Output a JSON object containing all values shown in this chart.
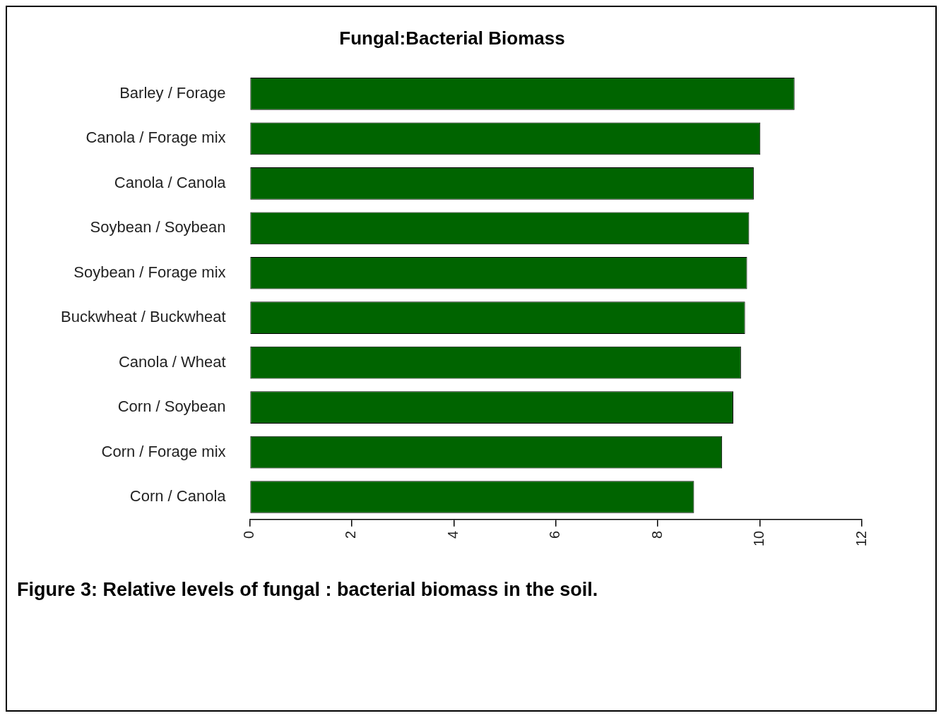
{
  "chart_data": {
    "type": "bar",
    "orientation": "horizontal",
    "title": "Fungal:Bacterial Biomass",
    "categories": [
      "Barley / Forage",
      "Canola / Forage mix",
      "Canola / Canola",
      "Soybean / Soybean",
      "Soybean / Forage mix",
      "Buckwheat / Buckwheat",
      "Canola / Wheat",
      "Corn / Soybean",
      "Corn / Forage mix",
      "Corn / Canola"
    ],
    "values": [
      10.68,
      10.01,
      9.88,
      9.79,
      9.75,
      9.71,
      9.63,
      9.48,
      9.26,
      8.71
    ],
    "color": "#006400",
    "xlim": [
      0,
      12
    ],
    "xticks": [
      0,
      2,
      4,
      6,
      8,
      10,
      12
    ],
    "annotations": [
      "Figure 3: Relative levels of fungal : bacterial biomass in the soil."
    ]
  }
}
